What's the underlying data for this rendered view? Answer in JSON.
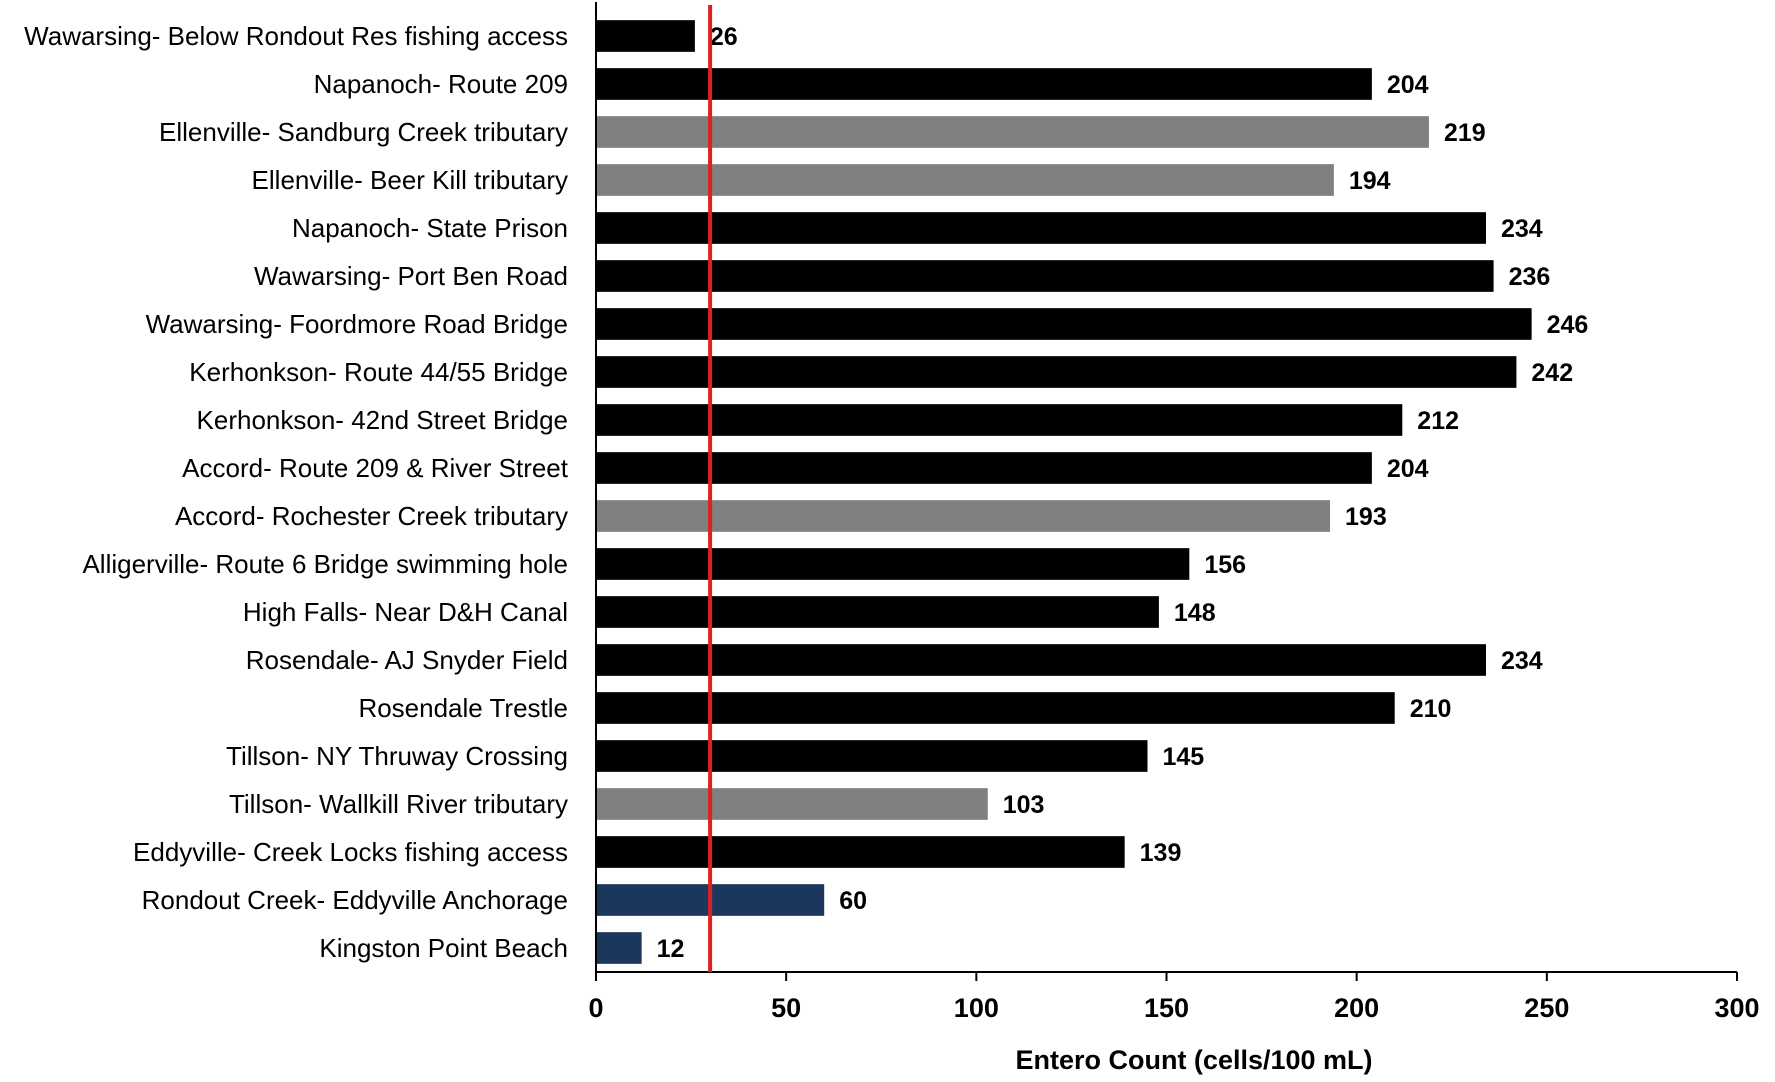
{
  "chart_data": {
    "type": "bar",
    "orientation": "horizontal",
    "title": "",
    "xlabel": "Entero Count (cells/100 mL)",
    "ylabel": "",
    "xlim": [
      0,
      300
    ],
    "xticks": [
      0,
      50,
      100,
      150,
      200,
      250,
      300
    ],
    "grid": false,
    "legend": "none",
    "reference_line": {
      "x": 30,
      "color": "#e02020"
    },
    "colors": {
      "black": "#000000",
      "gray": "#808080",
      "navy": "#1c375e"
    },
    "categories": [
      "Wawarsing- Below Rondout Res fishing access",
      "Napanoch- Route 209",
      "Ellenville- Sandburg Creek tributary",
      "Ellenville- Beer Kill tributary",
      "Napanoch- State Prison",
      "Wawarsing- Port Ben Road",
      "Wawarsing- Foordmore Road Bridge",
      "Kerhonkson- Route 44/55 Bridge",
      "Kerhonkson- 42nd Street Bridge",
      "Accord- Route 209 & River Street",
      "Accord- Rochester Creek tributary",
      "Alligerville- Route 6 Bridge swimming hole",
      "High Falls- Near D&H Canal",
      "Rosendale- AJ Snyder Field",
      "Rosendale Trestle",
      "Tillson- NY Thruway Crossing",
      "Tillson- Wallkill River tributary",
      "Eddyville- Creek Locks fishing access",
      "Rondout Creek- Eddyville Anchorage",
      "Kingston Point Beach"
    ],
    "values": [
      26,
      204,
      219,
      194,
      234,
      236,
      246,
      242,
      212,
      204,
      193,
      156,
      148,
      234,
      210,
      145,
      103,
      139,
      60,
      12
    ],
    "bar_colors": [
      "#000000",
      "#000000",
      "#808080",
      "#808080",
      "#000000",
      "#000000",
      "#000000",
      "#000000",
      "#000000",
      "#000000",
      "#808080",
      "#000000",
      "#000000",
      "#000000",
      "#000000",
      "#000000",
      "#808080",
      "#000000",
      "#1c375e",
      "#1c375e"
    ]
  }
}
